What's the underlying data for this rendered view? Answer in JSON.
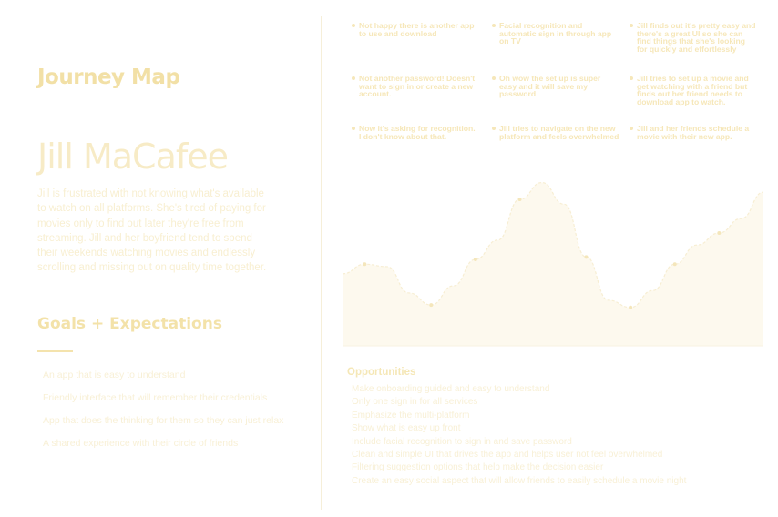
{
  "left": {
    "section_label": "Journey Map",
    "persona_name": "Jill MaCafee",
    "persona_bio": "Jill is frustrated with not knowing what's available to watch on all platforms. She's tired of paying for movies only to find out later they're free from streaming. Jill and her boyfriend tend to spend their weekends watching movies and endlessly scrolling and missing out on quality time together.",
    "goals_title": "Goals + Expectations",
    "goals": [
      "An app that is easy to understand",
      "Friendly interface that will remember their credentials",
      "App that does the thinking for them so they can just relax",
      "A shared experience with their circle of friends"
    ]
  },
  "thoughts": [
    "Not happy there is another app to use and download",
    "Facial recognition and automatic sign in through app on TV",
    "Jill finds out it's pretty easy and there's a great UI so she can find things that she's looking for quickly and effortlessly",
    "Not another password! Doesn't want to sign in or create a new account.",
    "Oh wow the set up is super easy and it will save my password",
    "Jill tries to set up a movie and get watching with a friend but finds out her friend needs to download app to watch.",
    "Now it's asking for recognition. I don't know about that.",
    "Jill tries to navigate on the new platform and feels overwhelmed",
    "Jill and her friends schedule a movie with their new app."
  ],
  "chart_data": {
    "type": "area",
    "values": [
      3.0,
      3.4,
      3.3,
      2.2,
      1.7,
      2.5,
      3.6,
      4.4,
      6.1,
      6.8,
      5.9,
      3.7,
      1.9,
      1.6,
      2.3,
      3.4,
      4.2,
      4.7,
      5.3,
      6.4
    ]
  },
  "opportunities": {
    "title": "Opportunities",
    "items": [
      "Make onboarding guided and easy to understand",
      "Only one sign in for all services",
      "Emphasize the multi-platform",
      "Show what is easy up front",
      "Include facial recognition to sign in and save password",
      "Clean and simple UI that drives the app and helps user not feel overwhelmed",
      "Filtering suggestion options that help make the decision easier",
      "Create an easy social aspect that will allow friends to easily schedule a movie night"
    ]
  },
  "colors": {
    "accent": "#f3e2a9",
    "curve_fill": "#fdf9ee",
    "curve_stroke": "#f7eed3",
    "divider": "#f6efd9"
  }
}
